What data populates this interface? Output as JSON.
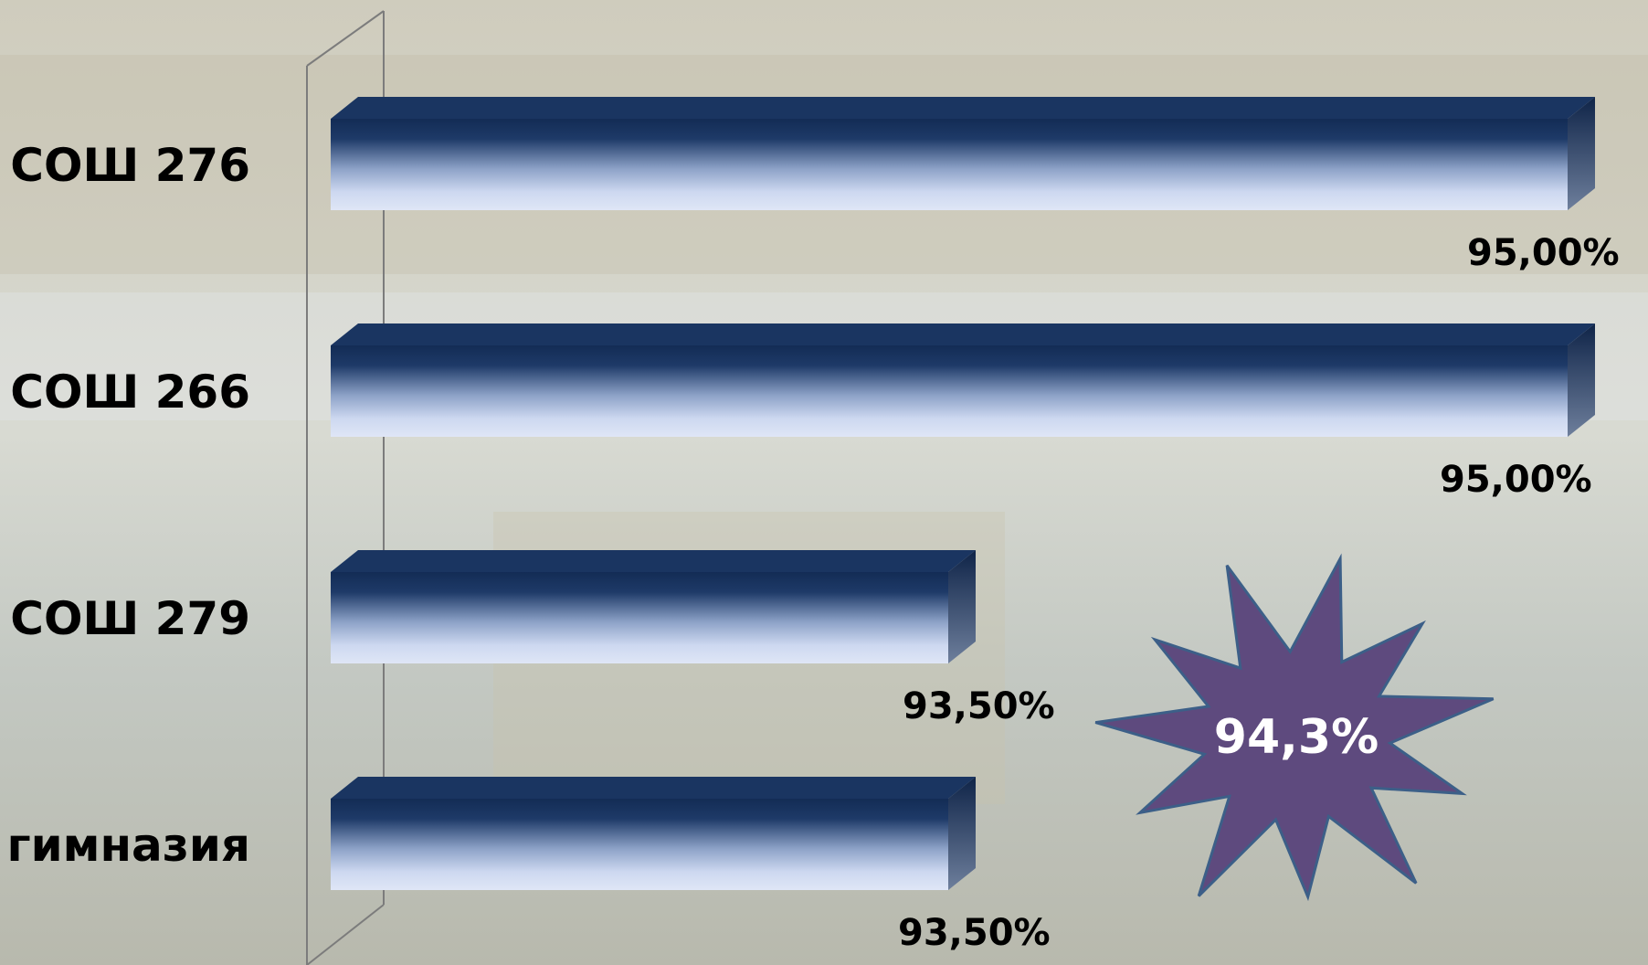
{
  "chart_data": {
    "type": "bar",
    "orientation": "horizontal",
    "categories": [
      "СОШ 276",
      "СОШ 266",
      "СОШ 279",
      "гимназия"
    ],
    "values": [
      95.0,
      95.0,
      93.5,
      93.5
    ],
    "value_labels": [
      "95,00%",
      "95,00%",
      "93,50%",
      "93,50%"
    ],
    "xlim": [
      92.0,
      95.0
    ],
    "grid": false,
    "style": "3d",
    "colors": {
      "bar_top": "#132c55",
      "bar_bottom": "#cdd8f0",
      "star_fill": "#5e4a7e",
      "star_stroke": "#3c5f88"
    },
    "annotation": {
      "shape": "starburst",
      "text": "94,3%",
      "placement": "right-bottom"
    }
  }
}
